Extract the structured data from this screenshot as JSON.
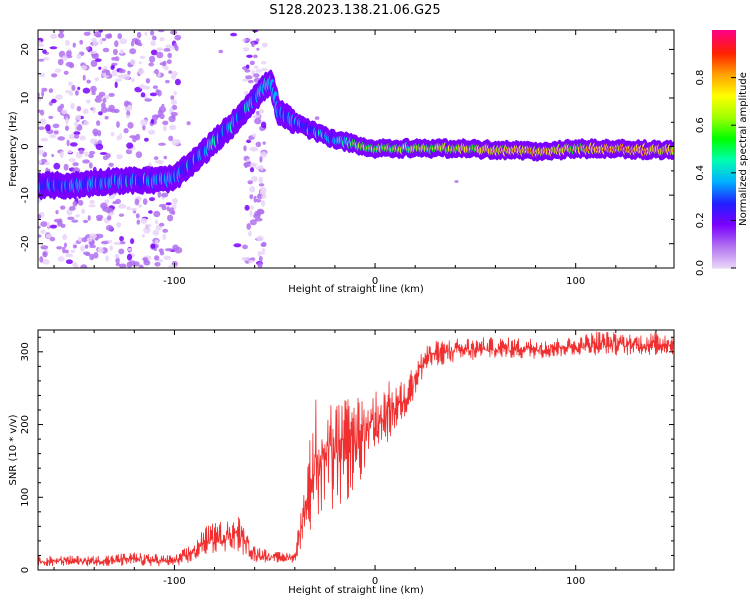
{
  "title": "S128.2023.138.21.06.G25",
  "chart_data": [
    {
      "type": "heatmap",
      "name": "spectrogram",
      "xlabel": "Height of straight line (km)",
      "ylabel": "Frequency (Hz)",
      "xlim": [
        -168,
        149
      ],
      "ylim": [
        -25,
        24
      ],
      "xticks": [
        -100,
        0,
        100
      ],
      "yticks": [
        -20,
        -10,
        0,
        10,
        20
      ],
      "colorbar": {
        "label": "Normalized spectral amplitude",
        "range": [
          0,
          1
        ],
        "ticks": [
          0.0,
          0.2,
          0.4,
          0.6,
          0.8
        ],
        "tick_labels": [
          "0.0",
          "0.2",
          "0.4",
          "0.6",
          "0.8"
        ],
        "colormap": [
          "#e8d4f8",
          "#b070f0",
          "#7a00ff",
          "#2020ff",
          "#00b0ff",
          "#00ffb0",
          "#00ff00",
          "#a0ff00",
          "#ffff00",
          "#ffa000",
          "#ff2000",
          "#ff0080"
        ]
      },
      "ridge": {
        "x": [
          -168,
          -150,
          -130,
          -110,
          -100,
          -90,
          -80,
          -70,
          -60,
          -52,
          -48,
          -44,
          -40,
          -30,
          -20,
          -10,
          0,
          20,
          50,
          80,
          100,
          120,
          149
        ],
        "y": [
          -8,
          -8,
          -7,
          -7,
          -6.5,
          -3,
          1,
          5,
          10,
          13.5,
          7,
          6,
          5,
          3,
          1.5,
          0.5,
          -0.5,
          -0.3,
          -0.5,
          -1,
          -0.5,
          -0.5,
          -0.8
        ],
        "amplitude": [
          0.4,
          0.45,
          0.45,
          0.5,
          0.5,
          0.5,
          0.5,
          0.5,
          0.5,
          0.55,
          0.45,
          0.45,
          0.45,
          0.5,
          0.5,
          0.65,
          0.7,
          0.7,
          0.8,
          0.85,
          0.8,
          0.9,
          0.85
        ]
      }
    },
    {
      "type": "line",
      "name": "snr",
      "xlabel": "Height of straight line (km)",
      "ylabel": "SNR (10 * v/v)",
      "xlim": [
        -168,
        149
      ],
      "ylim": [
        0,
        330
      ],
      "xticks": [
        -100,
        0,
        100
      ],
      "yticks": [
        0,
        100,
        200,
        300
      ],
      "color": "#f03030",
      "envelope": {
        "x": [
          -168,
          -140,
          -120,
          -100,
          -90,
          -85,
          -75,
          -68,
          -60,
          -50,
          -40,
          -34,
          -30,
          -25,
          -20,
          -15,
          -10,
          -5,
          0,
          5,
          10,
          15,
          20,
          25,
          30,
          40,
          60,
          80,
          100,
          110,
          130,
          149
        ],
        "lo": [
          5,
          5,
          5,
          5,
          10,
          20,
          25,
          25,
          10,
          10,
          10,
          50,
          60,
          70,
          80,
          90,
          110,
          130,
          150,
          170,
          190,
          210,
          240,
          270,
          280,
          285,
          290,
          290,
          295,
          295,
          295,
          295
        ],
        "hi": [
          20,
          20,
          25,
          20,
          40,
          60,
          70,
          75,
          35,
          25,
          25,
          150,
          240,
          250,
          240,
          240,
          250,
          250,
          250,
          260,
          260,
          260,
          290,
          310,
          315,
          320,
          320,
          320,
          320,
          330,
          325,
          330
        ]
      }
    }
  ]
}
